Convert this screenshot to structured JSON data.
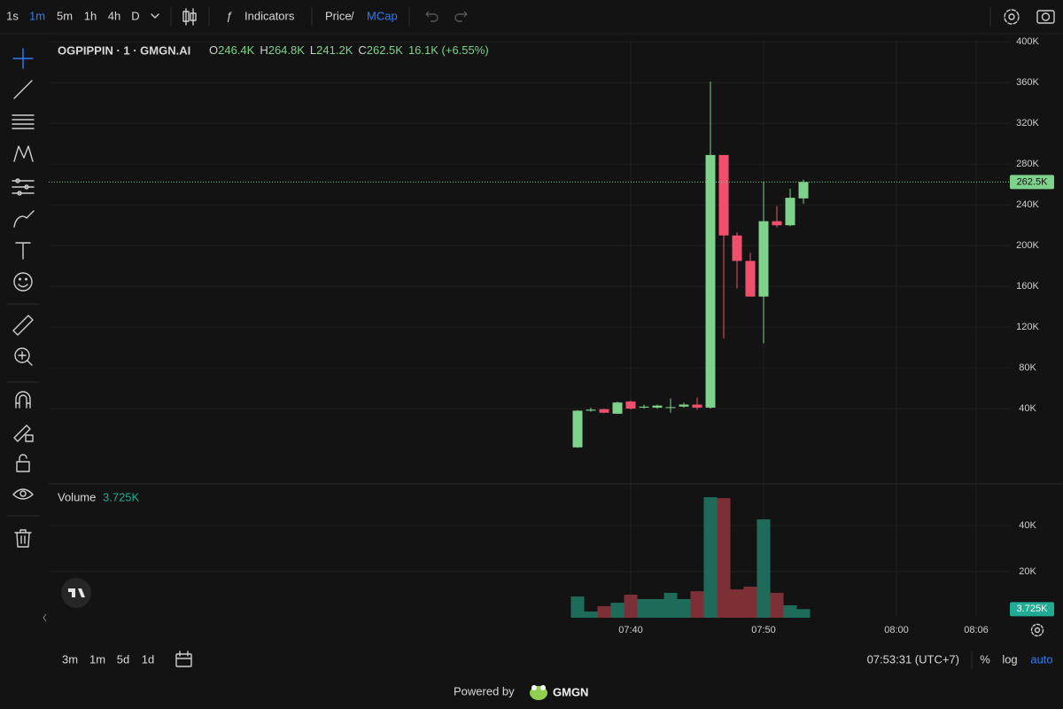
{
  "toolbar": {
    "intervals": [
      "1s",
      "1m",
      "5m",
      "1h",
      "4h",
      "D"
    ],
    "active_interval": "1m",
    "indicators": "Indicators",
    "price": "Price",
    "separator": "/",
    "mcap": "MCap"
  },
  "legend": {
    "symbol": "OGPIPPIN · 1 · GMGN.AI",
    "ohlc": [
      {
        "key": "O",
        "value": "246.4K"
      },
      {
        "key": "H",
        "value": "264.8K"
      },
      {
        "key": "L",
        "value": "241.2K"
      },
      {
        "key": "C",
        "value": "262.5K"
      }
    ],
    "change": "16.1K (+6.55%)"
  },
  "chart_data": [
    {
      "type": "candlestick",
      "x": [
        "07:36",
        "07:37",
        "07:38",
        "07:39",
        "07:40",
        "07:41",
        "07:42",
        "07:43",
        "07:44",
        "07:45",
        "07:46",
        "07:47",
        "07:48",
        "07:49",
        "07:50",
        "07:51",
        "07:52",
        "07:53"
      ],
      "open": [
        2000,
        38000,
        39500,
        35000,
        47000,
        41000,
        41000,
        41000,
        42000,
        44000,
        41000,
        289000,
        210000,
        185000,
        150000,
        224000,
        220000,
        246400
      ],
      "high": [
        38500,
        41000,
        40000,
        47000,
        48000,
        44000,
        44000,
        50000,
        46000,
        51000,
        361000,
        289000,
        213000,
        193000,
        263000,
        239000,
        256000,
        264800
      ],
      "low": [
        1500,
        37000,
        35500,
        35000,
        39000,
        40000,
        40000,
        36000,
        41000,
        39000,
        40000,
        109000,
        158000,
        150000,
        104000,
        218000,
        219000,
        241200
      ],
      "close": [
        38000,
        39000,
        36000,
        46000,
        40000,
        42000,
        43000,
        41500,
        44000,
        41000,
        289000,
        210000,
        185000,
        150000,
        224000,
        220000,
        247000,
        262500
      ],
      "up_color": "#7fd28b",
      "down_color": "#f0506e",
      "last_value_label": "262.5K",
      "xlim": [
        "06:56",
        "08:08"
      ],
      "xticks": [
        "07:40",
        "07:50",
        "08:00",
        "08:06"
      ],
      "ylim": [
        -33000,
        402000
      ],
      "yticks": [
        {
          "value": 40000,
          "label": "40K"
        },
        {
          "value": 80000,
          "label": "80K"
        },
        {
          "value": 120000,
          "label": "120K"
        },
        {
          "value": 160000,
          "label": "160K"
        },
        {
          "value": 200000,
          "label": "200K"
        },
        {
          "value": 240000,
          "label": "240K"
        },
        {
          "value": 280000,
          "label": "280K"
        },
        {
          "value": 320000,
          "label": "320K"
        },
        {
          "value": 360000,
          "label": "360K"
        },
        {
          "value": 400000,
          "label": "400K"
        }
      ],
      "grid": true
    },
    {
      "type": "bar",
      "title": "Volume",
      "values": [
        9200,
        2700,
        5000,
        6500,
        10000,
        8100,
        8100,
        10800,
        8100,
        11500,
        52300,
        51900,
        12300,
        13500,
        42700,
        10800,
        5400,
        3725
      ],
      "colors": [
        "#1f6b5a",
        "#1f6b5a",
        "#7c2f36",
        "#1f6b5a",
        "#7c2f36",
        "#1f6b5a",
        "#1f6b5a",
        "#1f6b5a",
        "#1f6b5a",
        "#7c2f36",
        "#1f6b5a",
        "#7c2f36",
        "#7c2f36",
        "#7c2f36",
        "#1f6b5a",
        "#7c2f36",
        "#1f6b5a",
        "#1f6b5a"
      ],
      "last_value_label": "3.725K",
      "label_color": "#22ab94",
      "ylim": [
        0,
        57700
      ],
      "yticks": [
        {
          "value": 20000,
          "label": "20K"
        },
        {
          "value": 40000,
          "label": "40K"
        }
      ],
      "grid": true
    }
  ],
  "footer": {
    "ranges": [
      "3m",
      "1m",
      "5d",
      "1d"
    ],
    "clock": "07:53:31 (UTC+7)",
    "percent": "%",
    "log": "log",
    "auto": "auto"
  },
  "branding": {
    "powered_by": "Powered by",
    "brand": "GMGN"
  }
}
